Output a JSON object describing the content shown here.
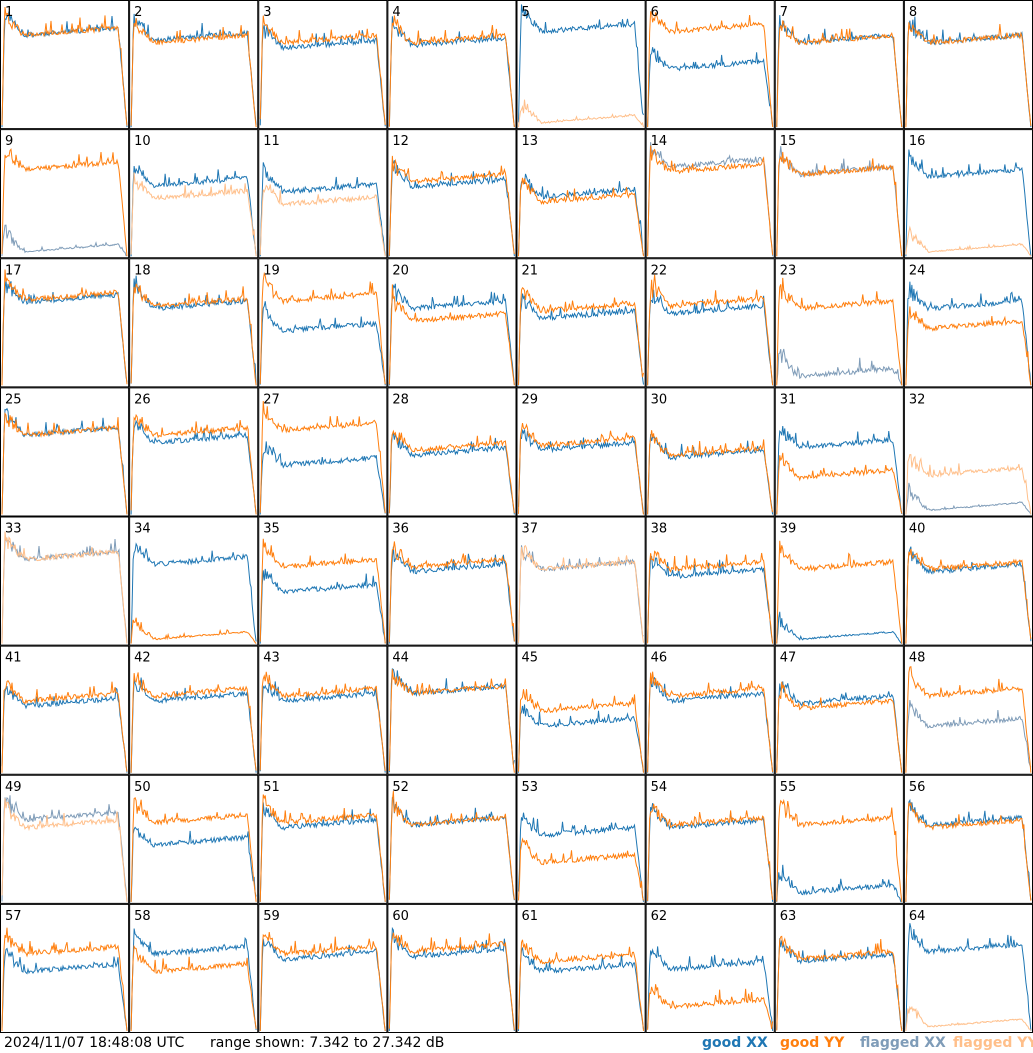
{
  "footer": {
    "timestamp": "2024/11/07 18:48:08 UTC",
    "range": "range shown: 7.342 to 27.342 dB"
  },
  "legend": {
    "good_xx": "good XX",
    "good_yy": "good YY",
    "flagged_xx": "flagged XX",
    "flagged_yy": "flagged YY"
  },
  "colors": {
    "good_xx": "#1f77b4",
    "good_yy": "#ff7f0e",
    "flagged_xx": "#7f9cb8",
    "flagged_yy": "#ffbf8a",
    "frame": "#000000"
  },
  "chart_data": {
    "type": "line",
    "grid": "8x8 small multiples",
    "ylim": [
      7.342,
      27.342
    ],
    "yunit": "dB",
    "series_names": [
      "good XX",
      "good YY",
      "flagged XX",
      "flagged YY"
    ],
    "panels": [
      {
        "id": "1",
        "xx": "good",
        "yy": "good",
        "xx_base": 0.72,
        "yy_base": 0.72
      },
      {
        "id": "2",
        "xx": "good",
        "yy": "good",
        "xx_base": 0.68,
        "yy_base": 0.66
      },
      {
        "id": "3",
        "xx": "good",
        "yy": "good",
        "xx_base": 0.62,
        "yy_base": 0.66
      },
      {
        "id": "4",
        "xx": "good",
        "yy": "good",
        "xx_base": 0.64,
        "yy_base": 0.66
      },
      {
        "id": "5",
        "xx": "good",
        "yy": "flagged",
        "xx_base": 0.75,
        "yy_base": 0.02
      },
      {
        "id": "6",
        "xx": "good",
        "yy": "good",
        "xx_base": 0.45,
        "yy_base": 0.75
      },
      {
        "id": "7",
        "xx": "good",
        "yy": "good",
        "xx_base": 0.66,
        "yy_base": 0.66
      },
      {
        "id": "8",
        "xx": "good",
        "yy": "good",
        "xx_base": 0.66,
        "yy_base": 0.66
      },
      {
        "id": "9",
        "xx": "flagged",
        "yy": "good",
        "xx_base": 0.02,
        "yy_base": 0.68
      },
      {
        "id": "10",
        "xx": "good",
        "yy": "flagged",
        "xx_base": 0.55,
        "yy_base": 0.45
      },
      {
        "id": "11",
        "xx": "good",
        "yy": "flagged",
        "xx_base": 0.5,
        "yy_base": 0.4
      },
      {
        "id": "12",
        "xx": "good",
        "yy": "good",
        "xx_base": 0.54,
        "yy_base": 0.58
      },
      {
        "id": "13",
        "xx": "good",
        "yy": "good",
        "xx_base": 0.46,
        "yy_base": 0.42
      },
      {
        "id": "14",
        "xx": "flagged",
        "yy": "good",
        "xx_base": 0.7,
        "yy_base": 0.66
      },
      {
        "id": "15",
        "xx": "flagged",
        "yy": "good",
        "xx_base": 0.64,
        "yy_base": 0.64
      },
      {
        "id": "16",
        "xx": "good",
        "yy": "flagged",
        "xx_base": 0.62,
        "yy_base": 0.02
      },
      {
        "id": "17",
        "xx": "good",
        "yy": "good",
        "xx_base": 0.65,
        "yy_base": 0.67
      },
      {
        "id": "18",
        "xx": "good",
        "yy": "good",
        "xx_base": 0.6,
        "yy_base": 0.62
      },
      {
        "id": "19",
        "xx": "good",
        "yy": "good",
        "xx_base": 0.42,
        "yy_base": 0.66
      },
      {
        "id": "20",
        "xx": "good",
        "yy": "good",
        "xx_base": 0.6,
        "yy_base": 0.5
      },
      {
        "id": "21",
        "xx": "good",
        "yy": "good",
        "xx_base": 0.52,
        "yy_base": 0.58
      },
      {
        "id": "22",
        "xx": "good",
        "yy": "good",
        "xx_base": 0.56,
        "yy_base": 0.62
      },
      {
        "id": "23",
        "xx": "flagged",
        "yy": "good",
        "xx_base": 0.06,
        "yy_base": 0.6
      },
      {
        "id": "24",
        "xx": "good",
        "yy": "good",
        "xx_base": 0.6,
        "yy_base": 0.44
      },
      {
        "id": "25",
        "xx": "good",
        "yy": "good",
        "xx_base": 0.62,
        "yy_base": 0.62
      },
      {
        "id": "26",
        "xx": "good",
        "yy": "good",
        "xx_base": 0.56,
        "yy_base": 0.62
      },
      {
        "id": "27",
        "xx": "good",
        "yy": "good",
        "xx_base": 0.38,
        "yy_base": 0.66
      },
      {
        "id": "28",
        "xx": "good",
        "yy": "good",
        "xx_base": 0.46,
        "yy_base": 0.5
      },
      {
        "id": "29",
        "xx": "good",
        "yy": "good",
        "xx_base": 0.5,
        "yy_base": 0.54
      },
      {
        "id": "30",
        "xx": "good",
        "yy": "good",
        "xx_base": 0.44,
        "yy_base": 0.46
      },
      {
        "id": "31",
        "xx": "good",
        "yy": "good",
        "xx_base": 0.52,
        "yy_base": 0.28
      },
      {
        "id": "32",
        "xx": "flagged",
        "yy": "flagged",
        "xx_base": 0.02,
        "yy_base": 0.3
      },
      {
        "id": "33",
        "xx": "flagged",
        "yy": "flagged",
        "xx_base": 0.66,
        "yy_base": 0.66
      },
      {
        "id": "34",
        "xx": "good",
        "yy": "good",
        "xx_base": 0.62,
        "yy_base": 0.02
      },
      {
        "id": "35",
        "xx": "good",
        "yy": "good",
        "xx_base": 0.4,
        "yy_base": 0.6
      },
      {
        "id": "36",
        "xx": "good",
        "yy": "good",
        "xx_base": 0.56,
        "yy_base": 0.6
      },
      {
        "id": "37",
        "xx": "flagged",
        "yy": "flagged",
        "xx_base": 0.58,
        "yy_base": 0.58
      },
      {
        "id": "38",
        "xx": "good",
        "yy": "good",
        "xx_base": 0.52,
        "yy_base": 0.58
      },
      {
        "id": "39",
        "xx": "good",
        "yy": "good",
        "xx_base": 0.02,
        "yy_base": 0.58
      },
      {
        "id": "40",
        "xx": "good",
        "yy": "good",
        "xx_base": 0.56,
        "yy_base": 0.58
      },
      {
        "id": "41",
        "xx": "good",
        "yy": "good",
        "xx_base": 0.52,
        "yy_base": 0.56
      },
      {
        "id": "42",
        "xx": "good",
        "yy": "good",
        "xx_base": 0.56,
        "yy_base": 0.6
      },
      {
        "id": "43",
        "xx": "good",
        "yy": "good",
        "xx_base": 0.56,
        "yy_base": 0.6
      },
      {
        "id": "44",
        "xx": "good",
        "yy": "good",
        "xx_base": 0.62,
        "yy_base": 0.62
      },
      {
        "id": "45",
        "xx": "good",
        "yy": "good",
        "xx_base": 0.36,
        "yy_base": 0.48
      },
      {
        "id": "46",
        "xx": "good",
        "yy": "good",
        "xx_base": 0.56,
        "yy_base": 0.6
      },
      {
        "id": "47",
        "xx": "good",
        "yy": "good",
        "xx_base": 0.54,
        "yy_base": 0.5
      },
      {
        "id": "48",
        "xx": "flagged",
        "yy": "good",
        "xx_base": 0.36,
        "yy_base": 0.6
      },
      {
        "id": "49",
        "xx": "flagged",
        "yy": "flagged",
        "xx_base": 0.64,
        "yy_base": 0.58
      },
      {
        "id": "50",
        "xx": "good",
        "yy": "good",
        "xx_base": 0.44,
        "yy_base": 0.62
      },
      {
        "id": "51",
        "xx": "good",
        "yy": "good",
        "xx_base": 0.58,
        "yy_base": 0.62
      },
      {
        "id": "52",
        "xx": "good",
        "yy": "good",
        "xx_base": 0.6,
        "yy_base": 0.6
      },
      {
        "id": "53",
        "xx": "good",
        "yy": "good",
        "xx_base": 0.52,
        "yy_base": 0.3
      },
      {
        "id": "54",
        "xx": "good",
        "yy": "good",
        "xx_base": 0.58,
        "yy_base": 0.6
      },
      {
        "id": "55",
        "xx": "good",
        "yy": "good",
        "xx_base": 0.06,
        "yy_base": 0.6
      },
      {
        "id": "56",
        "xx": "good",
        "yy": "good",
        "xx_base": 0.6,
        "yy_base": 0.58
      },
      {
        "id": "57",
        "xx": "good",
        "yy": "good",
        "xx_base": 0.46,
        "yy_base": 0.6
      },
      {
        "id": "58",
        "xx": "good",
        "yy": "good",
        "xx_base": 0.6,
        "yy_base": 0.46
      },
      {
        "id": "59",
        "xx": "good",
        "yy": "good",
        "xx_base": 0.56,
        "yy_base": 0.6
      },
      {
        "id": "60",
        "xx": "good",
        "yy": "good",
        "xx_base": 0.58,
        "yy_base": 0.62
      },
      {
        "id": "61",
        "xx": "good",
        "yy": "good",
        "xx_base": 0.46,
        "yy_base": 0.54
      },
      {
        "id": "62",
        "xx": "good",
        "yy": "good",
        "xx_base": 0.48,
        "yy_base": 0.18
      },
      {
        "id": "63",
        "xx": "good",
        "yy": "good",
        "xx_base": 0.54,
        "yy_base": 0.56
      },
      {
        "id": "64",
        "xx": "good",
        "yy": "flagged",
        "xx_base": 0.62,
        "yy_base": 0.02
      }
    ]
  }
}
